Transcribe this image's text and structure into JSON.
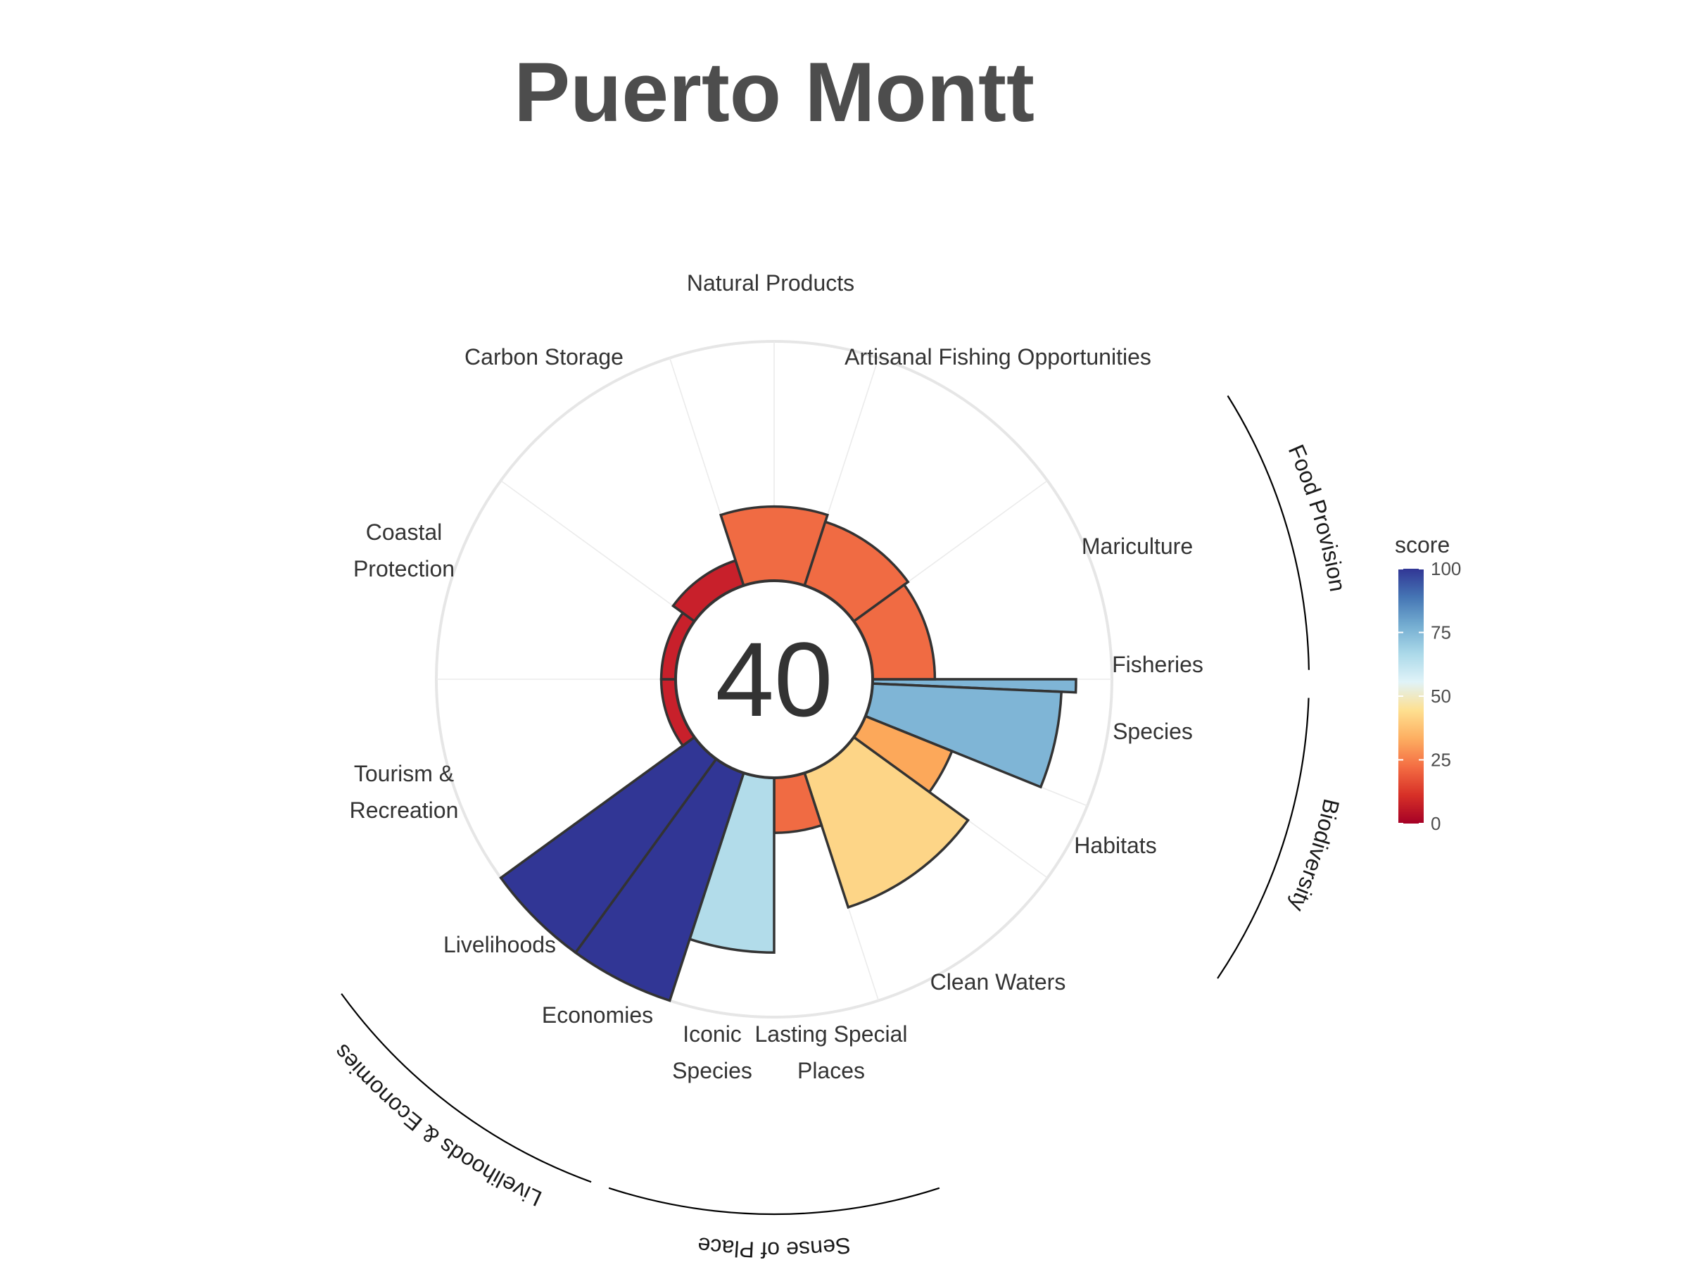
{
  "chart_data": {
    "type": "polar-bar",
    "title": "Puerto Montt",
    "center_score": "40",
    "rlim": [
      0,
      100
    ],
    "color_scale": {
      "name": "score",
      "range": [
        0,
        100
      ],
      "ticks": [
        "0",
        "25",
        "50",
        "75",
        "100"
      ],
      "colors": [
        "#a50026",
        "#d73027",
        "#f46d43",
        "#fdae61",
        "#fee090",
        "#e0f3f8",
        "#abd9e9",
        "#74add1",
        "#4575b4",
        "#313695"
      ]
    },
    "goals": [
      {
        "label": "Fisheries",
        "value": 85,
        "start_deg": 90,
        "end_deg": 92.5,
        "color": "#7fb5d6"
      },
      {
        "label": "Species",
        "value": 79,
        "start_deg": 92.5,
        "end_deg": 112,
        "color": "#7fb5d6"
      },
      {
        "label": "Habitats",
        "value": 39,
        "start_deg": 112,
        "end_deg": 126,
        "color": "#fca85a"
      },
      {
        "label": "Clean Waters",
        "value": 59,
        "start_deg": 126,
        "end_deg": 162,
        "color": "#fdd587"
      },
      {
        "label": "Lasting Special Places",
        "value": 23,
        "start_deg": 162,
        "end_deg": 180,
        "color": "#f06b43"
      },
      {
        "label": "Iconic Species",
        "value": 73,
        "start_deg": 180,
        "end_deg": 198,
        "color": "#b2dcea"
      },
      {
        "label": "Economies",
        "value": 100,
        "start_deg": 198,
        "end_deg": 216,
        "color": "#313695"
      },
      {
        "label": "Livelihoods",
        "value": 100,
        "start_deg": 216,
        "end_deg": 234,
        "color": "#313695"
      },
      {
        "label": "Tourism & Recreation",
        "value": 6,
        "start_deg": 234,
        "end_deg": 270,
        "color": "#c8202b"
      },
      {
        "label": "Coastal Protection",
        "value": 6,
        "start_deg": 270,
        "end_deg": 306,
        "color": "#c8202b"
      },
      {
        "label": "Carbon Storage",
        "value": 11,
        "start_deg": 306,
        "end_deg": 342,
        "color": "#c8202b"
      },
      {
        "label": "Natural Products",
        "value": 31,
        "start_deg": 342,
        "end_deg": 378,
        "color": "#f06b43"
      },
      {
        "label": "Artisanal Fishing Opportunities",
        "value": 28,
        "start_deg": 18,
        "end_deg": 54,
        "color": "#f06b43"
      },
      {
        "label": "Mariculture",
        "value": 26,
        "start_deg": 54,
        "end_deg": 90,
        "color": "#f06b43"
      }
    ],
    "goal_labels": [
      {
        "lines": [
          "Natural Products"
        ],
        "anchor": "middle"
      },
      {
        "lines": [
          "Carbon Storage"
        ],
        "anchor": "middle"
      },
      {
        "lines": [
          "Artisanal Fishing Opportunities"
        ],
        "anchor": "middle"
      },
      {
        "lines": [
          "Coastal",
          "Protection"
        ],
        "anchor": "middle"
      },
      {
        "lines": [
          "Mariculture"
        ],
        "anchor": "middle"
      },
      {
        "lines": [
          "Fisheries"
        ],
        "anchor": "middle"
      },
      {
        "lines": [
          "Species"
        ],
        "anchor": "middle"
      },
      {
        "lines": [
          "Tourism &",
          "Recreation"
        ],
        "anchor": "middle"
      },
      {
        "lines": [
          "Habitats"
        ],
        "anchor": "middle"
      },
      {
        "lines": [
          "Clean Waters"
        ],
        "anchor": "middle"
      },
      {
        "lines": [
          "Livelihoods"
        ],
        "anchor": "middle"
      },
      {
        "lines": [
          "Economies"
        ],
        "anchor": "middle"
      },
      {
        "lines": [
          "Iconic",
          "Species"
        ],
        "anchor": "middle"
      },
      {
        "lines": [
          "Lasting Special",
          "Places"
        ],
        "anchor": "middle"
      }
    ],
    "groups": [
      {
        "label": "Food Provision",
        "start_deg": 58,
        "end_deg": 89
      },
      {
        "label": "Biodiversity",
        "start_deg": 92,
        "end_deg": 124
      },
      {
        "label": "Sense of Place",
        "start_deg": 162,
        "end_deg": 198
      },
      {
        "label": "Livelihoods & Economies",
        "start_deg": 200,
        "end_deg": 234
      }
    ]
  }
}
